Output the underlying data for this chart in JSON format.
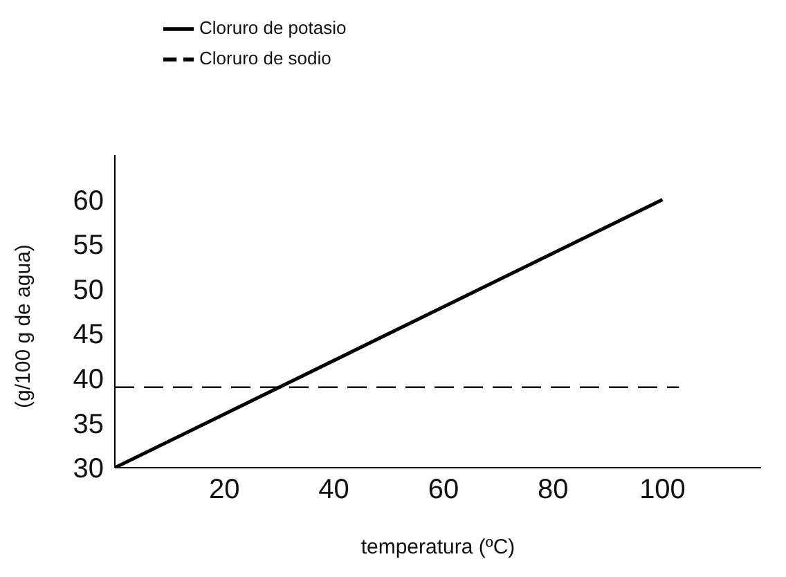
{
  "chart_data": {
    "type": "line",
    "xlabel": "temperatura (ºC)",
    "ylabel": "(g/100 g de agua)",
    "xlim": [
      0,
      118
    ],
    "xticks": [
      20,
      40,
      60,
      80,
      100
    ],
    "ylim": [
      30,
      65
    ],
    "yticks": [
      30,
      35,
      40,
      45,
      50,
      55,
      60
    ],
    "grid": false,
    "legend": "top left",
    "marker": "none",
    "series": [
      {
        "name": "Cloruro de potasio",
        "color": "#000000",
        "line_style": "solid",
        "x": [
          0,
          100
        ],
        "values": [
          30,
          60
        ]
      },
      {
        "name": "Cloruro de sodio",
        "color": "#000000",
        "line_style": "dashed",
        "x": [
          0,
          103
        ],
        "values": [
          39,
          39
        ]
      }
    ]
  }
}
